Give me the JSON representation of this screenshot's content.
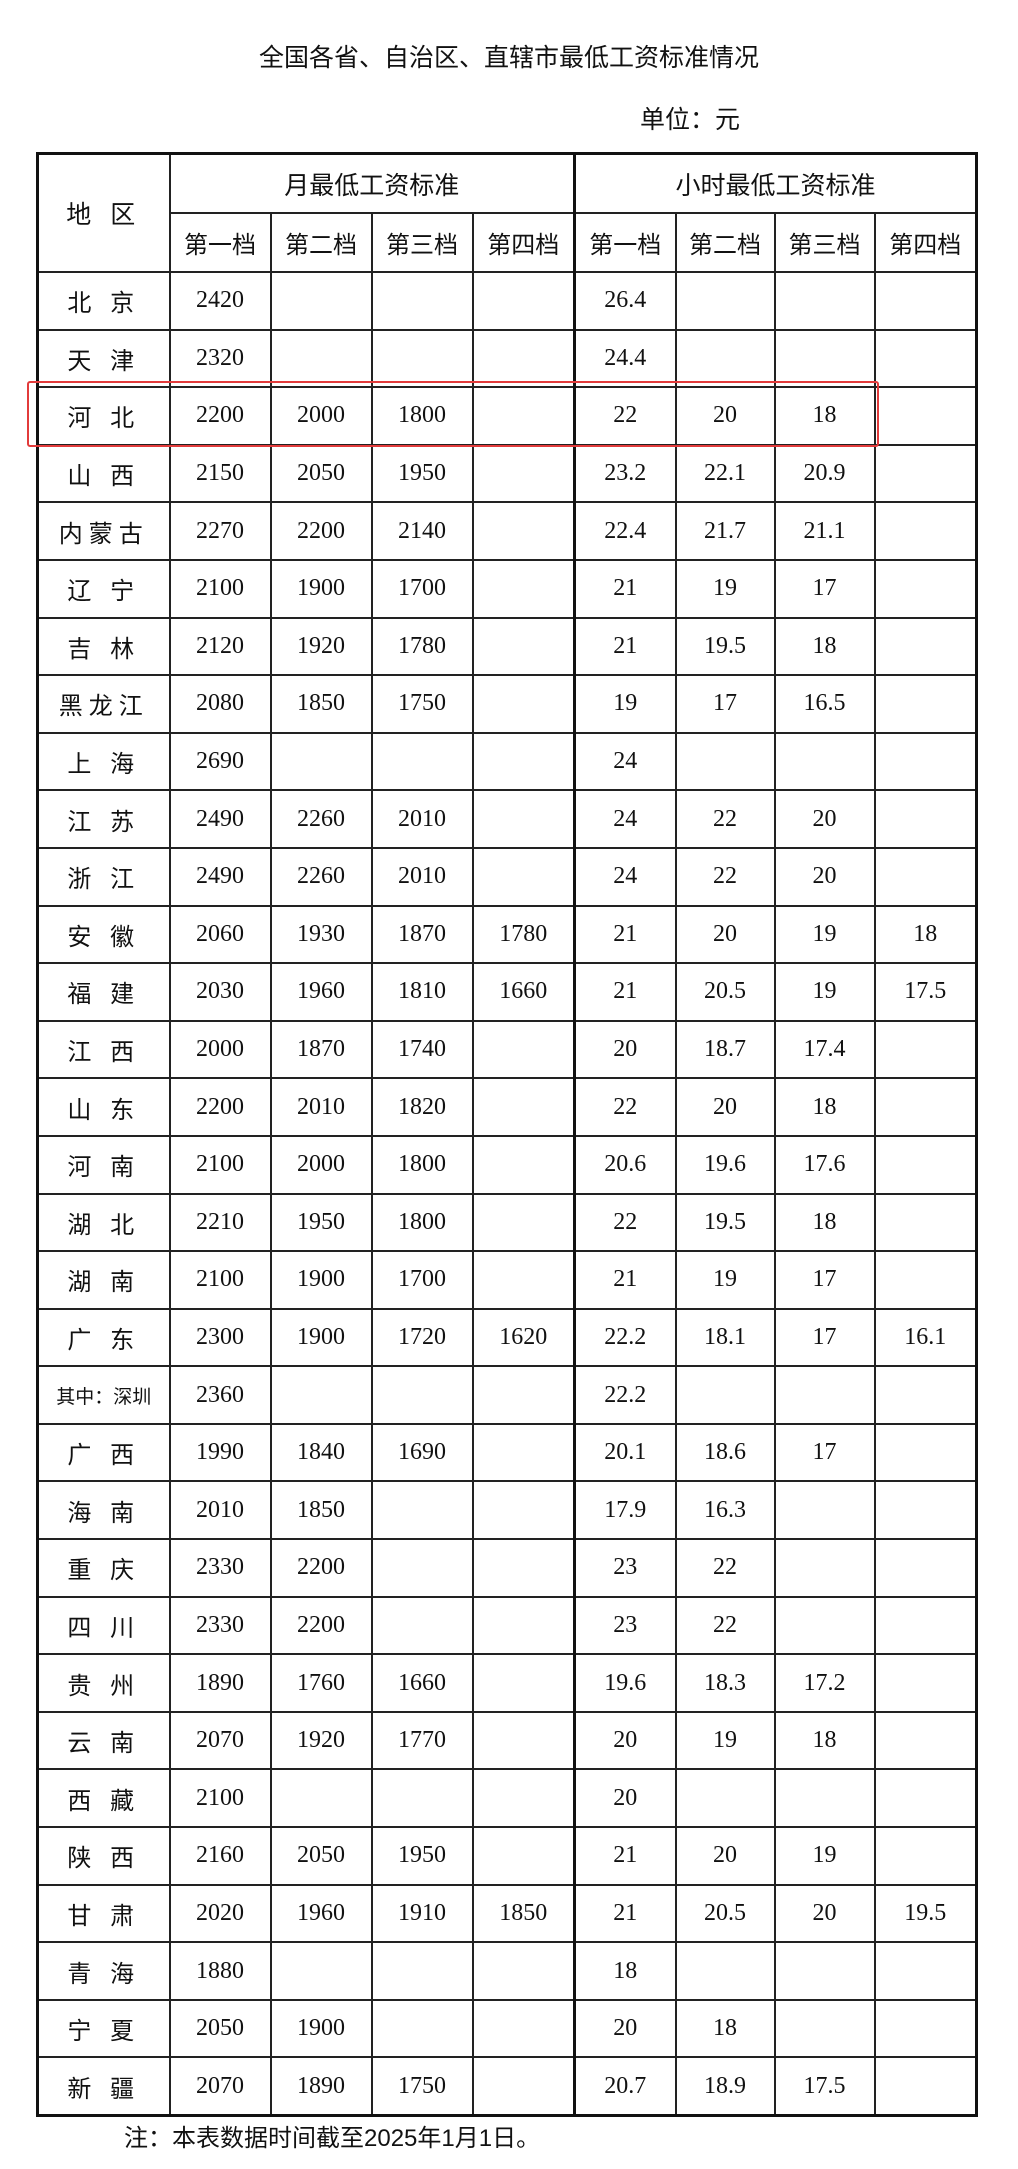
{
  "title": "全国各省、自治区、直辖市最低工资标准情况",
  "unit": "单位：元",
  "headers": {
    "region": "地 区",
    "monthly": "月最低工资标准",
    "hourly": "小时最低工资标准",
    "tiers": [
      "第一档",
      "第二档",
      "第三档",
      "第四档"
    ]
  },
  "highlight_color": "#e23b3b",
  "highlighted_row": "河 北",
  "rows": [
    {
      "region": "北 京",
      "monthly": [
        "2420",
        "",
        "",
        ""
      ],
      "hourly": [
        "26.4",
        "",
        "",
        ""
      ]
    },
    {
      "region": "天 津",
      "monthly": [
        "2320",
        "",
        "",
        ""
      ],
      "hourly": [
        "24.4",
        "",
        "",
        ""
      ]
    },
    {
      "region": "河 北",
      "monthly": [
        "2200",
        "2000",
        "1800",
        ""
      ],
      "hourly": [
        "22",
        "20",
        "18",
        ""
      ]
    },
    {
      "region": "山 西",
      "monthly": [
        "2150",
        "2050",
        "1950",
        ""
      ],
      "hourly": [
        "23.2",
        "22.1",
        "20.9",
        ""
      ]
    },
    {
      "region": "内蒙古",
      "monthly": [
        "2270",
        "2200",
        "2140",
        ""
      ],
      "hourly": [
        "22.4",
        "21.7",
        "21.1",
        ""
      ]
    },
    {
      "region": "辽 宁",
      "monthly": [
        "2100",
        "1900",
        "1700",
        ""
      ],
      "hourly": [
        "21",
        "19",
        "17",
        ""
      ]
    },
    {
      "region": "吉 林",
      "monthly": [
        "2120",
        "1920",
        "1780",
        ""
      ],
      "hourly": [
        "21",
        "19.5",
        "18",
        ""
      ]
    },
    {
      "region": "黑龙江",
      "monthly": [
        "2080",
        "1850",
        "1750",
        ""
      ],
      "hourly": [
        "19",
        "17",
        "16.5",
        ""
      ]
    },
    {
      "region": "上 海",
      "monthly": [
        "2690",
        "",
        "",
        ""
      ],
      "hourly": [
        "24",
        "",
        "",
        ""
      ]
    },
    {
      "region": "江 苏",
      "monthly": [
        "2490",
        "2260",
        "2010",
        ""
      ],
      "hourly": [
        "24",
        "22",
        "20",
        ""
      ]
    },
    {
      "region": "浙 江",
      "monthly": [
        "2490",
        "2260",
        "2010",
        ""
      ],
      "hourly": [
        "24",
        "22",
        "20",
        ""
      ]
    },
    {
      "region": "安 徽",
      "monthly": [
        "2060",
        "1930",
        "1870",
        "1780"
      ],
      "hourly": [
        "21",
        "20",
        "19",
        "18"
      ]
    },
    {
      "region": "福 建",
      "monthly": [
        "2030",
        "1960",
        "1810",
        "1660"
      ],
      "hourly": [
        "21",
        "20.5",
        "19",
        "17.5"
      ]
    },
    {
      "region": "江 西",
      "monthly": [
        "2000",
        "1870",
        "1740",
        ""
      ],
      "hourly": [
        "20",
        "18.7",
        "17.4",
        ""
      ]
    },
    {
      "region": "山 东",
      "monthly": [
        "2200",
        "2010",
        "1820",
        ""
      ],
      "hourly": [
        "22",
        "20",
        "18",
        ""
      ]
    },
    {
      "region": "河 南",
      "monthly": [
        "2100",
        "2000",
        "1800",
        ""
      ],
      "hourly": [
        "20.6",
        "19.6",
        "17.6",
        ""
      ]
    },
    {
      "region": "湖 北",
      "monthly": [
        "2210",
        "1950",
        "1800",
        ""
      ],
      "hourly": [
        "22",
        "19.5",
        "18",
        ""
      ]
    },
    {
      "region": "湖 南",
      "monthly": [
        "2100",
        "1900",
        "1700",
        ""
      ],
      "hourly": [
        "21",
        "19",
        "17",
        ""
      ]
    },
    {
      "region": "广 东",
      "monthly": [
        "2300",
        "1900",
        "1720",
        "1620"
      ],
      "hourly": [
        "22.2",
        "18.1",
        "17",
        "16.1"
      ]
    },
    {
      "region": "其中：深圳",
      "monthly": [
        "2360",
        "",
        "",
        ""
      ],
      "hourly": [
        "22.2",
        "",
        "",
        ""
      ]
    },
    {
      "region": "广 西",
      "monthly": [
        "1990",
        "1840",
        "1690",
        ""
      ],
      "hourly": [
        "20.1",
        "18.6",
        "17",
        ""
      ]
    },
    {
      "region": "海 南",
      "monthly": [
        "2010",
        "1850",
        "",
        ""
      ],
      "hourly": [
        "17.9",
        "16.3",
        "",
        ""
      ]
    },
    {
      "region": "重 庆",
      "monthly": [
        "2330",
        "2200",
        "",
        ""
      ],
      "hourly": [
        "23",
        "22",
        "",
        ""
      ]
    },
    {
      "region": "四 川",
      "monthly": [
        "2330",
        "2200",
        "",
        ""
      ],
      "hourly": [
        "23",
        "22",
        "",
        ""
      ]
    },
    {
      "region": "贵 州",
      "monthly": [
        "1890",
        "1760",
        "1660",
        ""
      ],
      "hourly": [
        "19.6",
        "18.3",
        "17.2",
        ""
      ]
    },
    {
      "region": "云 南",
      "monthly": [
        "2070",
        "1920",
        "1770",
        ""
      ],
      "hourly": [
        "20",
        "19",
        "18",
        ""
      ]
    },
    {
      "region": "西 藏",
      "monthly": [
        "2100",
        "",
        "",
        ""
      ],
      "hourly": [
        "20",
        "",
        "",
        ""
      ]
    },
    {
      "region": "陕 西",
      "monthly": [
        "2160",
        "2050",
        "1950",
        ""
      ],
      "hourly": [
        "21",
        "20",
        "19",
        ""
      ]
    },
    {
      "region": "甘 肃",
      "monthly": [
        "2020",
        "1960",
        "1910",
        "1850"
      ],
      "hourly": [
        "21",
        "20.5",
        "20",
        "19.5"
      ]
    },
    {
      "region": "青 海",
      "monthly": [
        "1880",
        "",
        "",
        ""
      ],
      "hourly": [
        "18",
        "",
        "",
        ""
      ]
    },
    {
      "region": "宁 夏",
      "monthly": [
        "2050",
        "1900",
        "",
        ""
      ],
      "hourly": [
        "20",
        "18",
        "",
        ""
      ]
    },
    {
      "region": "新 疆",
      "monthly": [
        "2070",
        "1890",
        "1750",
        ""
      ],
      "hourly": [
        "20.7",
        "18.9",
        "17.5",
        ""
      ]
    }
  ],
  "note": "注：本表数据时间截至2025年1月1日。"
}
